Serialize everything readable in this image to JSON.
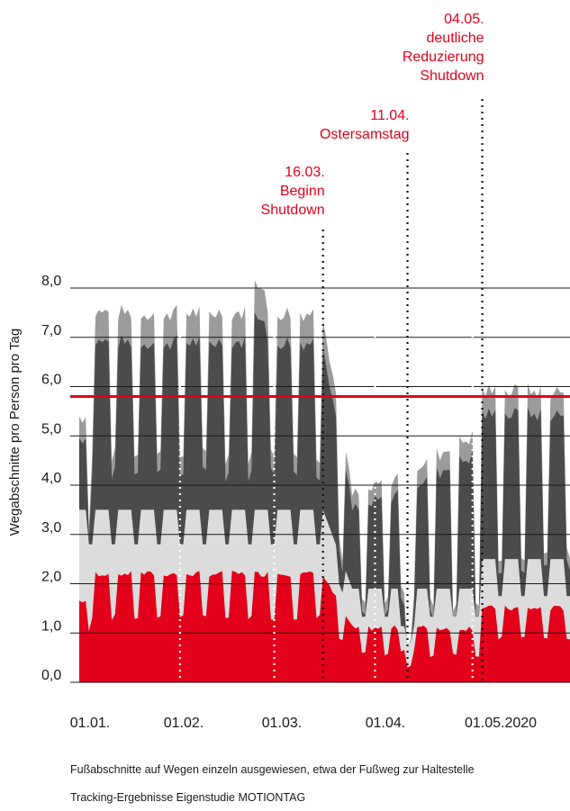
{
  "colors": {
    "red": "#e2001a",
    "light_gray": "#dcdcdc",
    "dark_gray": "#4b4b4b",
    "mid_gray": "#9b9b9b",
    "grid": "#1a1a1a"
  },
  "chart_data": {
    "type": "area",
    "stacked": true,
    "ylabel": "Wegabschnitte pro Person pro Tag",
    "ylim": [
      0,
      8.5
    ],
    "y_ticks": [
      "0,0",
      "1,0",
      "2,0",
      "3,0",
      "4,0",
      "5,0",
      "6,0",
      "7,0",
      "8,0"
    ],
    "x_tick_labels": [
      "01.01.",
      "01.02.",
      "01.03.",
      "01.04.",
      "01.05.2020"
    ],
    "x_range": [
      "2020-01-01",
      "2020-05-31"
    ],
    "reference_line": {
      "value": 5.8,
      "color": "#e2001a"
    },
    "events": [
      {
        "date": "2020-03-16",
        "lines": [
          "16.03.",
          "Beginn",
          "Shutdown"
        ]
      },
      {
        "date": "2020-04-11",
        "lines": [
          "11.04.",
          "Ostersamstag"
        ]
      },
      {
        "date": "2020-05-04",
        "lines": [
          "04.05.",
          "deutliche",
          "Reduzierung",
          "Shutdown"
        ]
      }
    ],
    "white_dotted_dates": [
      "2020-02-01",
      "2020-03-01",
      "2020-04-01",
      "2020-05-01"
    ],
    "levels": {
      "pre_shutdown": {
        "weekday_total": 7.5,
        "weekend_total": 4.6,
        "weekday_red": 2.2,
        "weekday_light": 3.5
      },
      "shutdown": {
        "weekday_total": 3.8,
        "weekend_total": 1.6,
        "weekday_red": 1.1,
        "weekday_light": 1.9
      },
      "reopening": {
        "weekday_total": 5.9,
        "weekend_total": 2.6,
        "weekday_red": 1.5,
        "weekday_light": 2.5
      }
    },
    "series": [
      {
        "color": "#e2001a"
      },
      {
        "color": "#dcdcdc"
      },
      {
        "color": "#4b4b4b"
      },
      {
        "color": "#9b9b9b"
      }
    ]
  },
  "footnotes": {
    "line1": "Fußabschnitte auf Wegen einzeln ausgewiesen, etwa der Fußweg zur Haltestelle",
    "line2": "Tracking-Ergebnisse Eigenstudie MOTIONTAG"
  }
}
